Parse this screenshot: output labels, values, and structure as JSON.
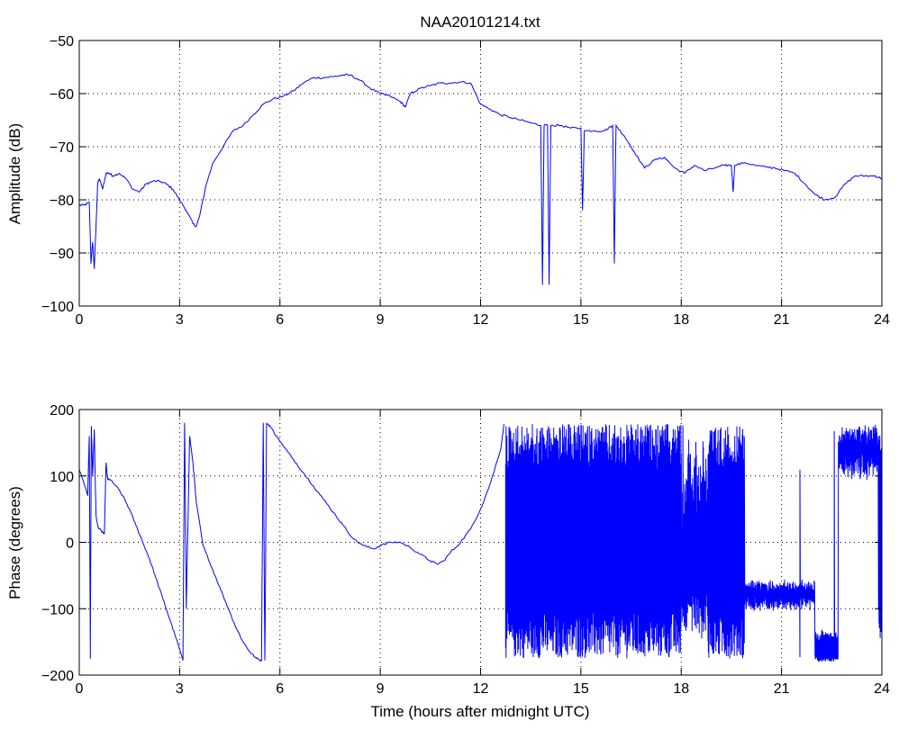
{
  "chart_data": [
    {
      "type": "line",
      "title": "NAA20101214.txt",
      "xlabel": "",
      "ylabel": "Amplitude (dB)",
      "xlim": [
        0,
        24
      ],
      "ylim": [
        -100,
        -50
      ],
      "xticks": [
        0,
        3,
        6,
        9,
        12,
        15,
        18,
        21,
        24
      ],
      "yticks": [
        -100,
        -90,
        -80,
        -70,
        -60,
        -50
      ],
      "grid": true,
      "color": "#0000ff",
      "series": [
        {
          "x": [
            0,
            0.15,
            0.3,
            0.35,
            0.4,
            0.45,
            0.5,
            0.55,
            0.6,
            0.7,
            0.8,
            0.9,
            1.0,
            1.2,
            1.4,
            1.6,
            1.8,
            2.0,
            2.2,
            2.4,
            2.6,
            2.8,
            3.0,
            3.2,
            3.4,
            3.5,
            3.6,
            3.8,
            4.0,
            4.3,
            4.6,
            4.9,
            5.2,
            5.5,
            5.8,
            6.1,
            6.4,
            6.7,
            7.0,
            7.3,
            7.6,
            7.9,
            8.1,
            8.4,
            8.7,
            9.0,
            9.3,
            9.6,
            9.75,
            9.9,
            10.2,
            10.5,
            10.8,
            11.1,
            11.4,
            11.7,
            12.0,
            12.3,
            12.6,
            12.9,
            13.2,
            13.5,
            13.8,
            13.85,
            13.9,
            14.0,
            14.05,
            14.1,
            14.4,
            14.7,
            15.0,
            15.05,
            15.1,
            15.4,
            15.7,
            15.95,
            16.0,
            16.05,
            16.3,
            16.6,
            16.9,
            17.2,
            17.5,
            17.8,
            18.1,
            18.4,
            18.7,
            19.0,
            19.3,
            19.5,
            19.55,
            19.6,
            19.9,
            20.2,
            20.5,
            20.8,
            21.1,
            21.4,
            21.7,
            22.0,
            22.3,
            22.6,
            22.9,
            23.2,
            23.5,
            23.8,
            24.0
          ],
          "y": [
            -81,
            -81,
            -80.5,
            -92,
            -88,
            -93,
            -85,
            -77,
            -76,
            -78,
            -75,
            -75,
            -75.5,
            -75,
            -76,
            -78,
            -78.5,
            -77,
            -76.5,
            -76.5,
            -77,
            -78,
            -80,
            -82,
            -84.5,
            -85,
            -83,
            -77,
            -73,
            -70,
            -67,
            -66,
            -64,
            -62,
            -61,
            -60.5,
            -59.5,
            -58,
            -57,
            -57,
            -56.8,
            -56.5,
            -56.5,
            -57.5,
            -59,
            -60,
            -60.5,
            -61.5,
            -62.5,
            -60,
            -59,
            -58.5,
            -58,
            -58,
            -57.8,
            -58,
            -62,
            -63,
            -64,
            -64.5,
            -65,
            -65.5,
            -66,
            -96,
            -66,
            -66,
            -96,
            -66,
            -66,
            -66.5,
            -66.5,
            -82,
            -67,
            -67,
            -67,
            -66,
            -92,
            -66,
            -68,
            -71,
            -74,
            -72.5,
            -72,
            -74,
            -75,
            -73.5,
            -74.5,
            -74,
            -73.5,
            -73.5,
            -78.5,
            -73.5,
            -73,
            -73.5,
            -73.8,
            -74,
            -74.5,
            -75,
            -77,
            -79,
            -80,
            -79.5,
            -77,
            -75.5,
            -75.5,
            -75.5,
            -76
          ]
        }
      ]
    },
    {
      "type": "line",
      "title": "",
      "xlabel": "Time (hours after midnight UTC)",
      "ylabel": "Phase (degrees)",
      "xlim": [
        0,
        24
      ],
      "ylim": [
        -200,
        200
      ],
      "xticks": [
        0,
        3,
        6,
        9,
        12,
        15,
        18,
        21,
        24
      ],
      "yticks": [
        -200,
        -100,
        0,
        100,
        200
      ],
      "grid": true,
      "color": "#0000ff",
      "series": [
        {
          "x": [
            0,
            0.1,
            0.2,
            0.25,
            0.3,
            0.33,
            0.36,
            0.4,
            0.45,
            0.5,
            0.55,
            0.6,
            0.7,
            0.75,
            0.8,
            0.85,
            0.9,
            1.1,
            1.3,
            1.5,
            1.7,
            1.9,
            2.1,
            2.3,
            2.5,
            2.7,
            2.9,
            3.1,
            3.15,
            3.2,
            3.3,
            3.4,
            3.5,
            3.7,
            3.9,
            4.1,
            4.3,
            4.5,
            4.7,
            4.9,
            5.1,
            5.3,
            5.45,
            5.5,
            5.55,
            5.6,
            5.7,
            5.9,
            6.1,
            6.4,
            6.7,
            7.0,
            7.3,
            7.6,
            7.9,
            8.2,
            8.5,
            8.8,
            9.0,
            9.3,
            9.6,
            9.9,
            10.2,
            10.5,
            10.7,
            10.9,
            11.1,
            11.4,
            11.7,
            12.0,
            12.3,
            12.6,
            12.7
          ],
          "y": [
            110,
            95,
            80,
            70,
            160,
            -175,
            175,
            100,
            170,
            40,
            25,
            20,
            15,
            12,
            120,
            95,
            95,
            85,
            70,
            50,
            25,
            0,
            -25,
            -55,
            -85,
            -115,
            -145,
            -178,
            180,
            -100,
            160,
            120,
            60,
            -5,
            -30,
            -55,
            -80,
            -105,
            -130,
            -150,
            -165,
            -175,
            -178,
            180,
            -178,
            180,
            175,
            160,
            145,
            125,
            105,
            85,
            65,
            45,
            25,
            5,
            -5,
            -10,
            -5,
            0,
            0,
            -8,
            -18,
            -28,
            -33,
            -28,
            -15,
            0,
            20,
            50,
            90,
            140,
            178
          ]
        },
        {
          "name": "",
          "x": [
            12.75,
            24.0
          ],
          "y": [
            -180,
            180
          ],
          "noise_band": true
        }
      ]
    }
  ]
}
